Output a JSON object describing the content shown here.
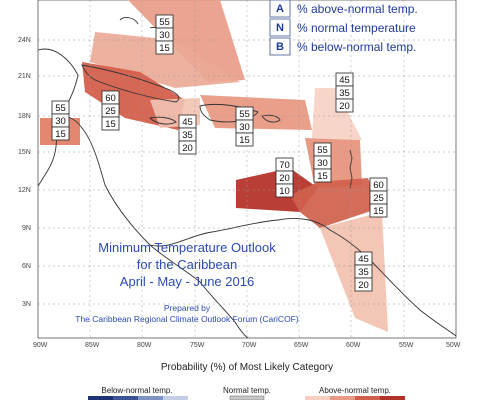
{
  "legend": {
    "above": {
      "key": "A",
      "text": "% above-normal temp."
    },
    "normal": {
      "key": "N",
      "text": "% normal temperature"
    },
    "below": {
      "key": "B",
      "text": "% below-normal temp."
    }
  },
  "lat_labels": [
    "24N",
    "21N",
    "18N",
    "15N",
    "12N",
    "9N",
    "6N",
    "3N"
  ],
  "lon_labels": [
    "90W",
    "85W",
    "80W",
    "75W",
    "70W",
    "65W",
    "60W",
    "55W",
    "50W"
  ],
  "title": {
    "line1": "Minimum Temperature Outlook",
    "line2": "for the Caribbean",
    "line3": "April - May - June 2016"
  },
  "credit": {
    "line1": "Prepared by",
    "line2": "The Caribbean Regional Climate Outlook Forum (CariCOF)"
  },
  "probability_label": "Probability (%) of Most Likely Category",
  "categories": {
    "below": "Below-normal temp.",
    "normal": "Normal temp.",
    "above": "Above-normal temp."
  },
  "colors": {
    "above_light": "#f6cfc2",
    "above_mid": "#e79a85",
    "above_strong": "#d0604c",
    "above_deep": "#b2332a",
    "below": "#3c5596",
    "normal": "#c8c8c8"
  },
  "regions": [
    {
      "name": "bahamas",
      "A": "55",
      "N": "30",
      "B": "15"
    },
    {
      "name": "belize",
      "A": "55",
      "N": "30",
      "B": "15"
    },
    {
      "name": "cuba",
      "A": "60",
      "N": "25",
      "B": "15"
    },
    {
      "name": "jamaica",
      "A": "45",
      "N": "35",
      "B": "20"
    },
    {
      "name": "hispaniola",
      "A": "55",
      "N": "30",
      "B": "15"
    },
    {
      "name": "leeward",
      "A": "45",
      "N": "35",
      "B": "20"
    },
    {
      "name": "lesser-antilles",
      "A": "55",
      "N": "30",
      "B": "15"
    },
    {
      "name": "caribbean-sea",
      "A": "70",
      "N": "20",
      "B": "10"
    },
    {
      "name": "windward",
      "A": "60",
      "N": "25",
      "B": "15"
    },
    {
      "name": "guianas",
      "A": "45",
      "N": "35",
      "B": "20"
    }
  ]
}
